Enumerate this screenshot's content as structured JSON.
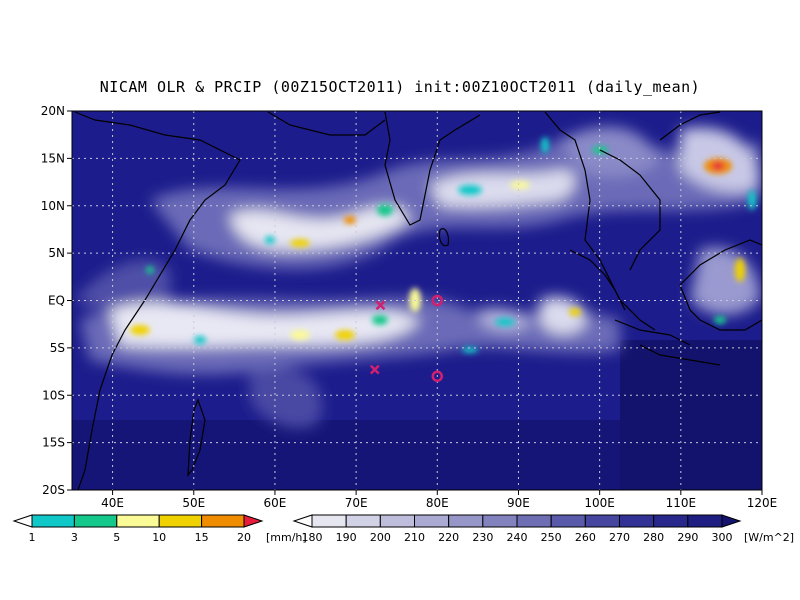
{
  "title": "NICAM OLR & PRCIP (00Z15OCT2011) init:00Z10OCT2011 (daily_mean)",
  "map": {
    "lon_range": [
      35,
      120
    ],
    "lat_range": [
      -20,
      20
    ],
    "lon_ticks": [
      "40E",
      "50E",
      "60E",
      "70E",
      "80E",
      "90E",
      "100E",
      "110E",
      "120E"
    ],
    "lat_ticks": [
      "20N",
      "15N",
      "10N",
      "5N",
      "EQ",
      "5S",
      "10S",
      "15S",
      "20S"
    ],
    "ocean_color": "#1c1c8c",
    "markers": [
      {
        "type": "x",
        "lon": 73,
        "lat": -0.5,
        "color": "#d0206e"
      },
      {
        "type": "x",
        "lon": 72.3,
        "lat": -7.3,
        "color": "#d0206e"
      },
      {
        "type": "o",
        "lon": 80,
        "lat": 0,
        "color": "#d0206e"
      },
      {
        "type": "o",
        "lon": 80,
        "lat": -8,
        "color": "#d0206e"
      }
    ]
  },
  "precip_bar": {
    "labels": [
      "1",
      "3",
      "5",
      "10",
      "15",
      "20"
    ],
    "unit": "[mm/h]",
    "colors": [
      "#ffffff",
      "#10c8c8",
      "#14c88c",
      "#fafa96",
      "#f0d200",
      "#f08c00",
      "#e61e3c"
    ]
  },
  "olr_bar": {
    "labels": [
      "180",
      "190",
      "200",
      "210",
      "220",
      "230",
      "240",
      "250",
      "260",
      "270",
      "280",
      "290",
      "300"
    ],
    "unit": "[W/m^2]",
    "colors": [
      "#ffffff",
      "#e6e6f0",
      "#d2d2e6",
      "#bebedc",
      "#aaaad2",
      "#9696c8",
      "#8282be",
      "#6e6eb4",
      "#5a5aaa",
      "#4646a0",
      "#323296",
      "#28288c",
      "#1e1e82",
      "#14146e"
    ]
  }
}
